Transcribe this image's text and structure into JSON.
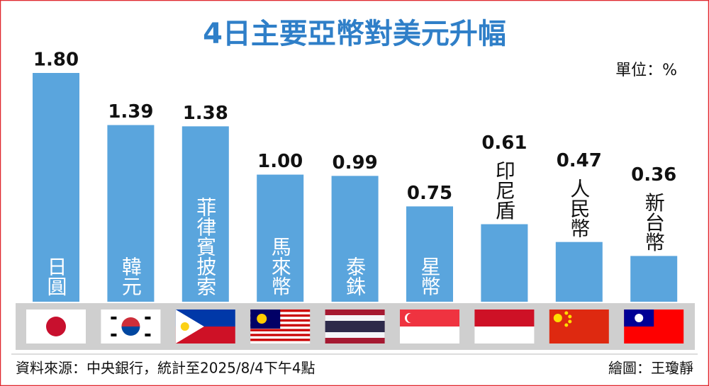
{
  "chart_data": {
    "type": "bar",
    "title": "4日主要亞幣對美元升幅",
    "unit": "單位：%",
    "categories": [
      "日圓",
      "韓元",
      "菲律賓披索",
      "馬來幣",
      "泰銖",
      "星幣",
      "印尼盾",
      "人民幣",
      "新台幣"
    ],
    "values": [
      1.8,
      1.39,
      1.38,
      1.0,
      0.99,
      0.75,
      0.61,
      0.47,
      0.36
    ],
    "value_labels": [
      "1.80",
      "1.39",
      "1.38",
      "1.00",
      "0.99",
      "0.75",
      "0.61",
      "0.47",
      "0.36"
    ],
    "color": "#5aa5dd",
    "source": "資料來源：中央銀行，統計至2025/8/4下午4點",
    "credit": "繪圖：王瓊靜"
  }
}
